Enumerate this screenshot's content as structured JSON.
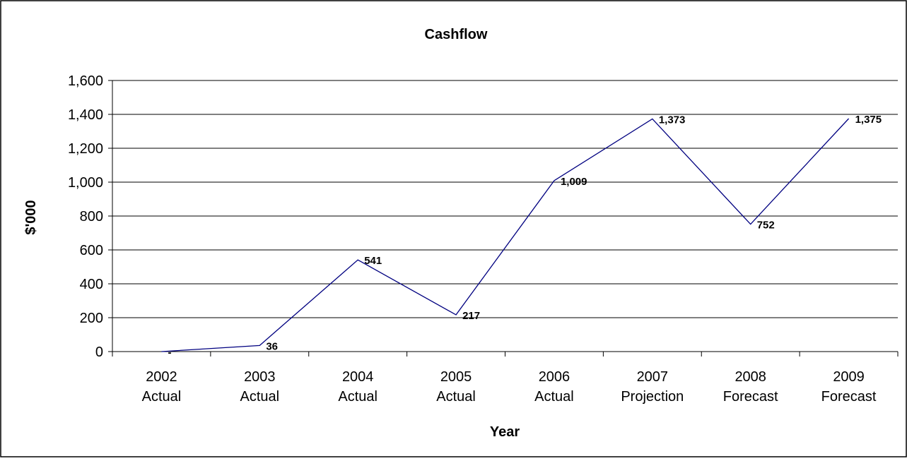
{
  "chart_data": {
    "type": "line",
    "title": "Cashflow",
    "xlabel": "Year",
    "ylabel": "$'000",
    "categories": [
      [
        "2002",
        "Actual"
      ],
      [
        "2003",
        "Actual"
      ],
      [
        "2004",
        "Actual"
      ],
      [
        "2005",
        "Actual"
      ],
      [
        "2006",
        "Actual"
      ],
      [
        "2007",
        "Projection"
      ],
      [
        "2008",
        "Forecast"
      ],
      [
        "2009",
        "Forecast"
      ]
    ],
    "series": [
      {
        "values": [
          0,
          36,
          541,
          217,
          1009,
          1373,
          752,
          1375
        ],
        "labels": [
          "-",
          "36",
          "541",
          "217",
          "1,009",
          "1,373",
          "752",
          "1,375"
        ],
        "color": "#000080"
      }
    ],
    "ylim": [
      0,
      1600
    ],
    "yticks": [
      0,
      200,
      400,
      600,
      800,
      1000,
      1200,
      1400,
      1600
    ],
    "ytick_labels": [
      "0",
      "200",
      "400",
      "600",
      "800",
      "1,000",
      "1,200",
      "1,400",
      "1,600"
    ],
    "grid": true,
    "legend": "none"
  }
}
